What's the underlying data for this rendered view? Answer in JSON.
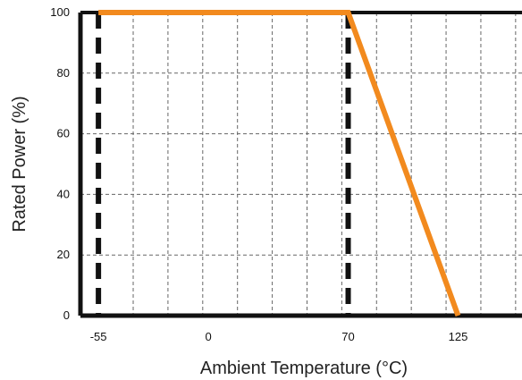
{
  "chart_data": {
    "type": "line",
    "title": "",
    "xlabel": "Ambient Temperature (°C)",
    "ylabel": "Rated Power (%)",
    "xlim": [
      -64,
      157
    ],
    "ylim": [
      0,
      100
    ],
    "x_ticks": [
      -55,
      0,
      70,
      125
    ],
    "y_ticks": [
      0,
      20,
      40,
      60,
      80,
      100
    ],
    "grid": true,
    "series": [
      {
        "x": [
          -55,
          70,
          125
        ],
        "y": [
          100,
          100,
          0
        ],
        "color": "#f28a1e"
      }
    ],
    "reference_lines": [
      {
        "x": -55,
        "style": "dashed",
        "color": "#111111"
      },
      {
        "x": 70,
        "style": "dashed",
        "color": "#111111"
      }
    ],
    "colors": {
      "frame": "#111111",
      "grid": "#666666",
      "curve": "#f28a1e"
    }
  }
}
